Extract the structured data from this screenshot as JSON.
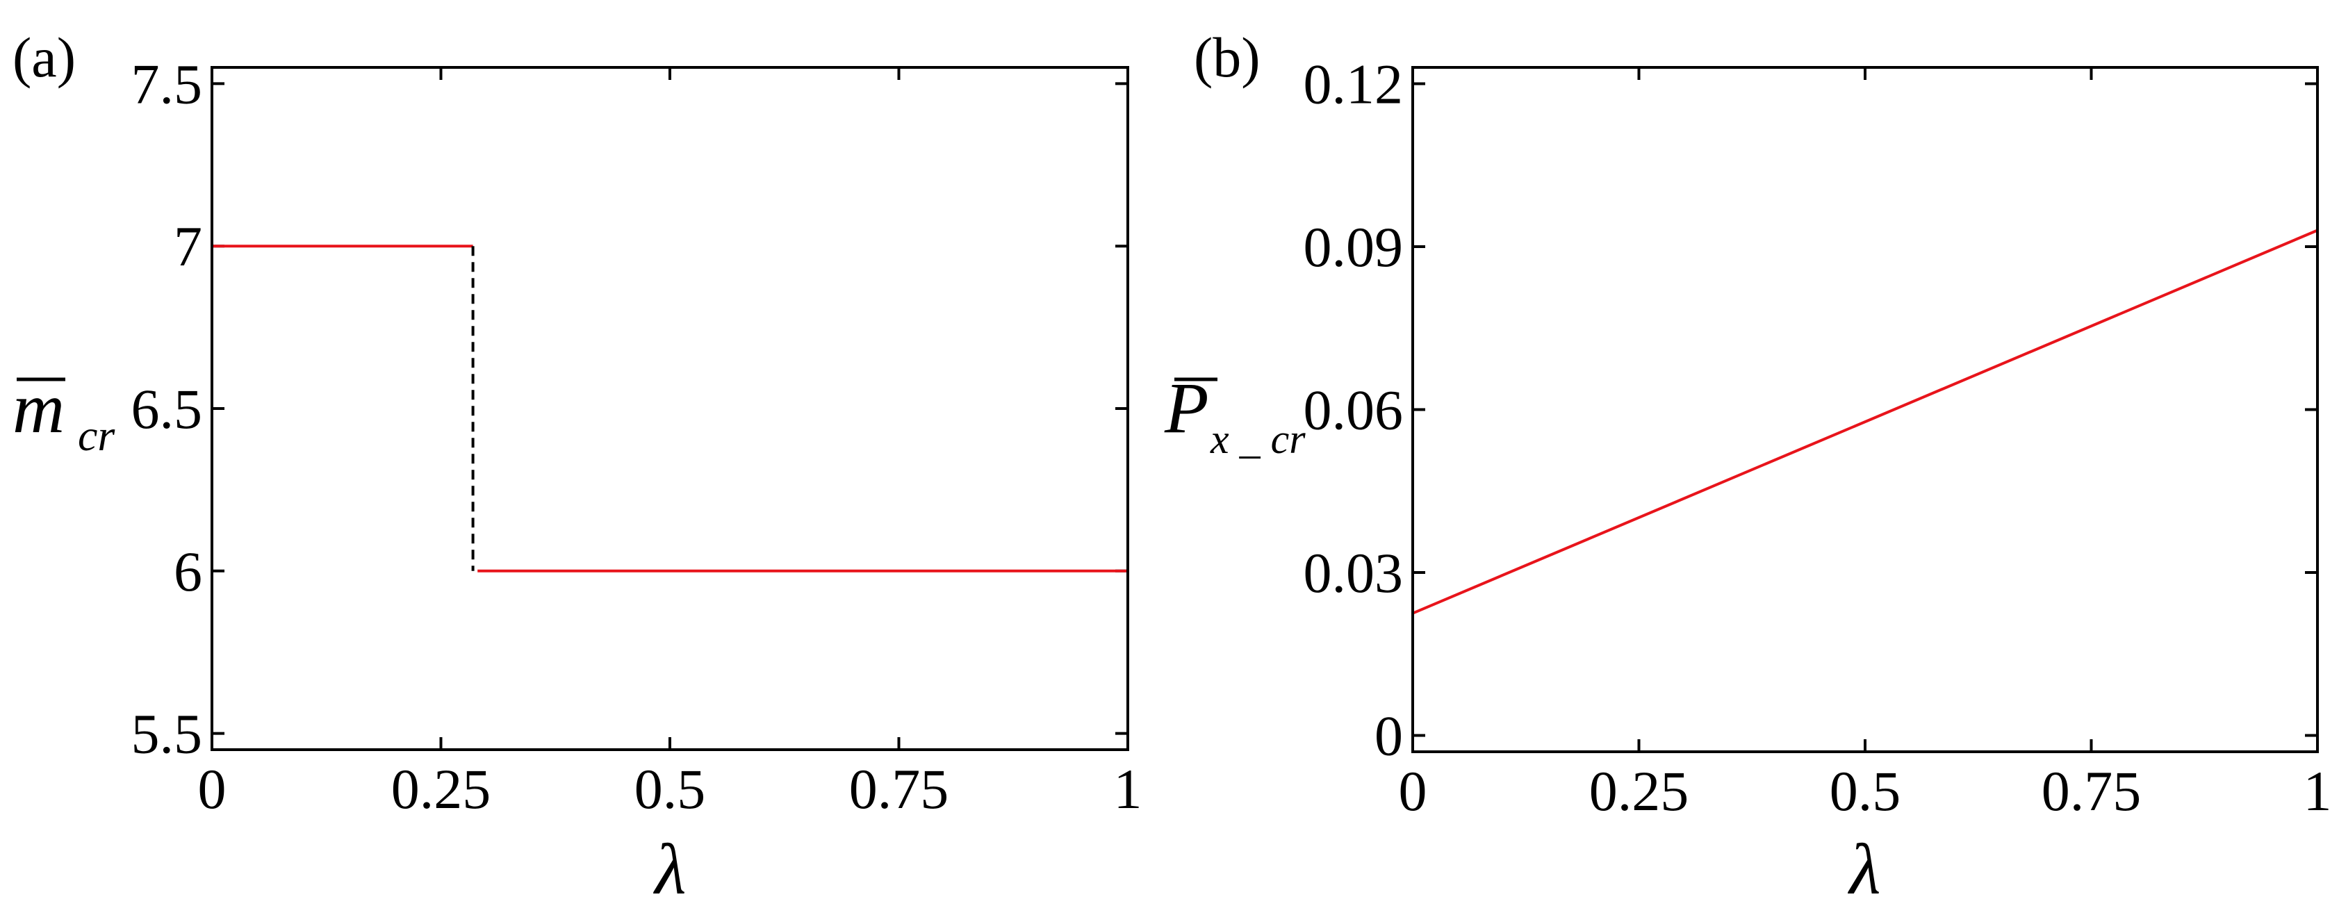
{
  "chart_data": [
    {
      "type": "line",
      "panel_label": "(a)",
      "xlabel": "λ",
      "ylabel": {
        "base": "m",
        "overbar": true,
        "subscript": "cr"
      },
      "xlim": [
        0,
        1
      ],
      "ylim": [
        5.45,
        7.55
      ],
      "xticks": [
        "0",
        "0.25",
        "0.5",
        "0.75",
        "1"
      ],
      "yticks": [
        "5.5",
        "6",
        "6.5",
        "7",
        "7.5"
      ],
      "grid": false,
      "series": [
        {
          "style": "solid",
          "color": "#e8141b",
          "points": [
            [
              0,
              7
            ],
            [
              0.285,
              7
            ]
          ]
        },
        {
          "style": "dashed",
          "color": "#000000",
          "points": [
            [
              0.285,
              7
            ],
            [
              0.285,
              6
            ]
          ]
        },
        {
          "style": "solid",
          "color": "#e8141b",
          "points": [
            [
              0.29,
              6
            ],
            [
              1,
              6
            ]
          ]
        }
      ]
    },
    {
      "type": "line",
      "panel_label": "(b)",
      "xlabel": "λ",
      "ylabel": {
        "base": "P",
        "overbar": true,
        "subscript": "x _ cr"
      },
      "xlim": [
        0,
        1
      ],
      "ylim": [
        -0.003,
        0.123
      ],
      "xticks": [
        "0",
        "0.25",
        "0.5",
        "0.75",
        "1"
      ],
      "yticks": [
        "0",
        "0.03",
        "0.06",
        "0.09",
        "0.12"
      ],
      "grid": false,
      "series": [
        {
          "style": "solid",
          "color": "#e8141b",
          "points": [
            [
              0,
              0.0225
            ],
            [
              1,
              0.093
            ]
          ]
        }
      ]
    }
  ]
}
